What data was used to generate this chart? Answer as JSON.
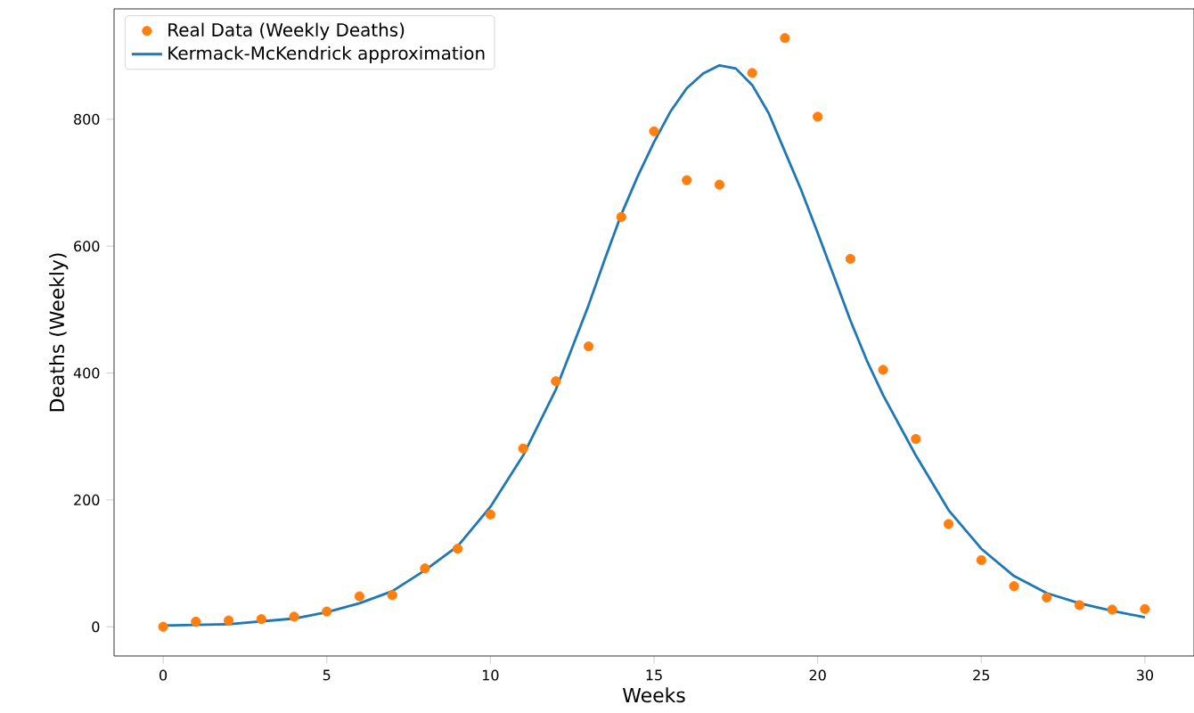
{
  "chart_data": {
    "type": "scatter",
    "xlabel": "Weeks",
    "ylabel": "Deaths (Weekly)",
    "legend": "top left",
    "xlim": [
      -1.5,
      31.5
    ],
    "ylim": [
      -46,
      974
    ],
    "xticks": [
      0,
      5,
      10,
      15,
      20,
      25,
      30
    ],
    "yticks": [
      0,
      200,
      400,
      600,
      800
    ],
    "x": [
      0,
      1,
      2,
      3,
      4,
      5,
      6,
      7,
      8,
      9,
      10,
      11,
      12,
      13,
      14,
      15,
      16,
      17,
      18,
      19,
      20,
      21,
      22,
      23,
      24,
      25,
      26,
      27,
      28,
      29,
      30
    ],
    "series": [
      {
        "name": "Real Data (Weekly Deaths)",
        "color": "#ff7f0e",
        "marker": "circle",
        "values": [
          0,
          8,
          10,
          12,
          16,
          24,
          48,
          50,
          92,
          123,
          177,
          281,
          387,
          442,
          646,
          781,
          704,
          697,
          873,
          928,
          804,
          580,
          405,
          296,
          162,
          105,
          64,
          46,
          34,
          27,
          28
        ]
      },
      {
        "name": "Kermack-McKendrick approximation",
        "type": "line",
        "color": "#1f77b4",
        "marker": "none",
        "line_style": "solid",
        "x": [
          0,
          2,
          4,
          5,
          6,
          7,
          8,
          9,
          10,
          11,
          12,
          12.5,
          13,
          13.5,
          14,
          14.5,
          15,
          15.5,
          16,
          16.5,
          17,
          17.5,
          18,
          18.5,
          19,
          19.5,
          20,
          20.5,
          21,
          21.5,
          22,
          23,
          24,
          25,
          26,
          27,
          28,
          29,
          30
        ],
        "values": [
          2,
          4,
          13,
          23,
          37,
          56,
          89,
          127,
          189,
          270,
          374,
          440,
          507,
          580,
          650,
          710,
          764,
          812,
          849,
          872,
          885,
          880,
          854,
          810,
          749,
          688,
          621,
          552,
          483,
          420,
          365,
          270,
          184,
          123,
          80,
          53,
          37,
          25,
          15
        ]
      }
    ]
  }
}
